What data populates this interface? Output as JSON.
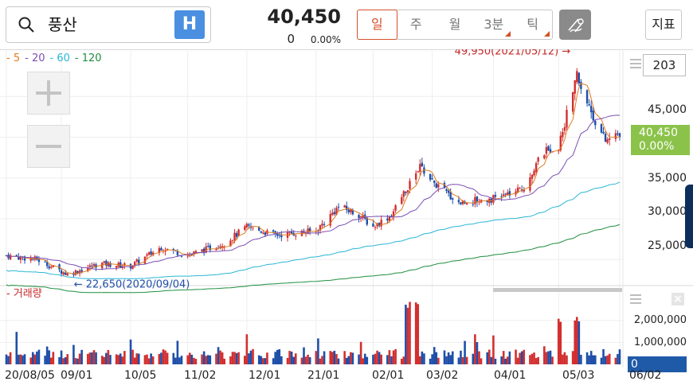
{
  "search": {
    "stock_name": "풍산",
    "h_label": "H"
  },
  "quote": {
    "price": "40,450",
    "change": "0",
    "change_pct": "0.00%"
  },
  "period_tabs": [
    {
      "label": "일",
      "active": true,
      "corner": false
    },
    {
      "label": "주",
      "active": false,
      "corner": false
    },
    {
      "label": "월",
      "active": false,
      "corner": false
    },
    {
      "label": "3분",
      "active": false,
      "corner": true
    },
    {
      "label": "틱",
      "active": false,
      "corner": true
    }
  ],
  "indicator_button": "지표",
  "ma_legend": [
    {
      "label": "5",
      "color": "#e07b20"
    },
    {
      "label": "20",
      "color": "#7b4fb3"
    },
    {
      "label": "60",
      "color": "#29b6d6"
    },
    {
      "label": "120",
      "color": "#1e8e3e"
    }
  ],
  "volume_legend": "거래량",
  "count_box": "203",
  "price_axis": [
    "45,000",
    "40,000",
    "35,000",
    "30,000",
    "25,000"
  ],
  "current_tag": {
    "price": "40,450",
    "pct": "0.00%"
  },
  "high_annotation": "49,950(2021/05/12)",
  "low_annotation": "22,650(2020/09/04)",
  "volume_axis": [
    "2,000,000",
    "1,000,000"
  ],
  "volume_zero": "0",
  "date_axis": [
    "20/08/05",
    "09/01",
    "10/05",
    "11/02",
    "12/01",
    "21/01",
    "02/01",
    "03/02",
    "04/01",
    "05/03",
    "06/02"
  ],
  "colors": {
    "up": "#d32f2f",
    "down": "#1f4fa8",
    "ma5": "#e07b20",
    "ma20": "#7b4fb3",
    "ma60": "#29b6d6",
    "ma120": "#1e8e3e",
    "accent": "#d4502a",
    "current": "#8bc34a"
  },
  "chart_data": {
    "type": "candlestick",
    "x_range": [
      "2020-08-05",
      "2021-06-02"
    ],
    "ylim": [
      22000,
      50000
    ],
    "high": {
      "value": 49950,
      "date": "2021-05-12"
    },
    "low": {
      "value": 22650,
      "date": "2020-09-04"
    },
    "last_close": 40450,
    "close_path": [
      [
        "2020-08-05",
        25500
      ],
      [
        "2020-08-20",
        25000
      ],
      [
        "2020-09-04",
        23200
      ],
      [
        "2020-09-20",
        24500
      ],
      [
        "2020-10-05",
        24200
      ],
      [
        "2020-10-20",
        26500
      ],
      [
        "2020-11-02",
        25500
      ],
      [
        "2020-11-20",
        27000
      ],
      [
        "2020-12-01",
        29000
      ],
      [
        "2020-12-15",
        28000
      ],
      [
        "2021-01-04",
        28500
      ],
      [
        "2021-01-15",
        31500
      ],
      [
        "2021-01-25",
        30500
      ],
      [
        "2021-02-01",
        29000
      ],
      [
        "2021-02-10",
        30500
      ],
      [
        "2021-02-18",
        34000
      ],
      [
        "2021-02-24",
        36500
      ],
      [
        "2021-03-02",
        34500
      ],
      [
        "2021-03-15",
        32000
      ],
      [
        "2021-04-01",
        32500
      ],
      [
        "2021-04-15",
        33500
      ],
      [
        "2021-04-25",
        38000
      ],
      [
        "2021-05-03",
        39000
      ],
      [
        "2021-05-12",
        47500
      ],
      [
        "2021-05-20",
        42500
      ],
      [
        "2021-05-26",
        39500
      ],
      [
        "2021-06-02",
        40450
      ]
    ],
    "volume_ylim": [
      0,
      2900000
    ],
    "volume_peaks": [
      {
        "date": "2021-02-18",
        "value": 2850000
      },
      {
        "date": "2021-02-22",
        "value": 2850000
      },
      {
        "date": "2021-05-03",
        "value": 2100000
      },
      {
        "date": "2021-05-12",
        "value": 2200000
      }
    ]
  }
}
